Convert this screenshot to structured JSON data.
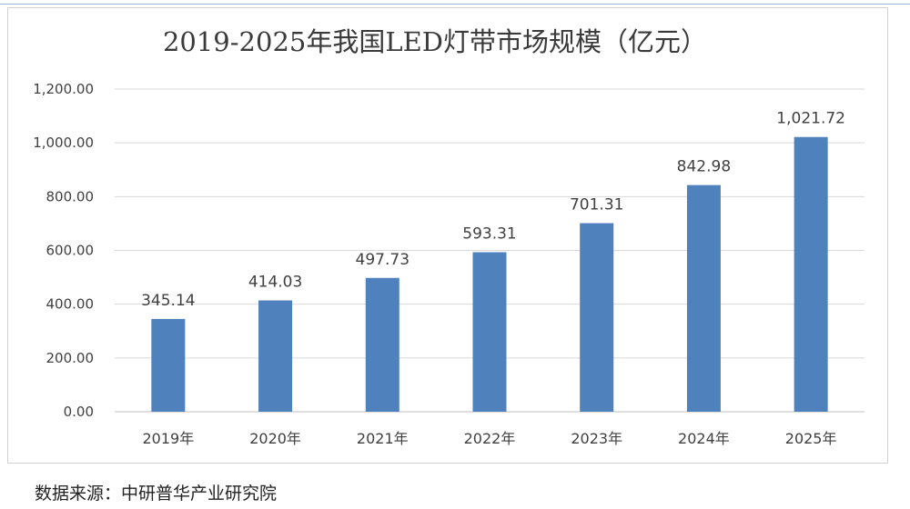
{
  "chart_data": {
    "type": "bar",
    "title": "2019-2025年我国LED灯带市场规模（亿元）",
    "categories": [
      "2019年",
      "2020年",
      "2021年",
      "2022年",
      "2023年",
      "2024年",
      "2025年"
    ],
    "values": [
      345.14,
      414.03,
      497.73,
      593.31,
      701.31,
      842.98,
      1021.72
    ],
    "data_labels": [
      "345.14",
      "414.03",
      "497.73",
      "593.31",
      "701.31",
      "842.98",
      "1,021.72"
    ],
    "y_ticks": [
      "0.00",
      "200.00",
      "400.00",
      "600.00",
      "800.00",
      "1,000.00",
      "1,200.00"
    ],
    "ylim": [
      0,
      1200
    ],
    "xlabel": "",
    "ylabel": "",
    "grid": true,
    "legend": "none",
    "bar_color": "#4f81bd"
  },
  "footer": {
    "source": "数据来源：中研普华产业研究院"
  }
}
